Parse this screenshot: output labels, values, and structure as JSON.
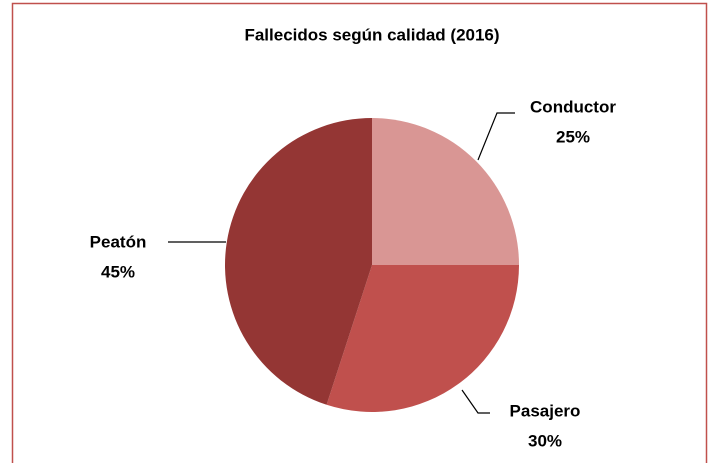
{
  "chart_data": {
    "type": "pie",
    "title": "Fallecidos según calidad  (2016)",
    "categories": [
      "Conductor",
      "Pasajero",
      "Peatón"
    ],
    "values": [
      25,
      30,
      45
    ],
    "value_labels": [
      "25%",
      "30%",
      "45%"
    ],
    "colors": [
      "#d99694",
      "#c0504d",
      "#943634"
    ]
  }
}
